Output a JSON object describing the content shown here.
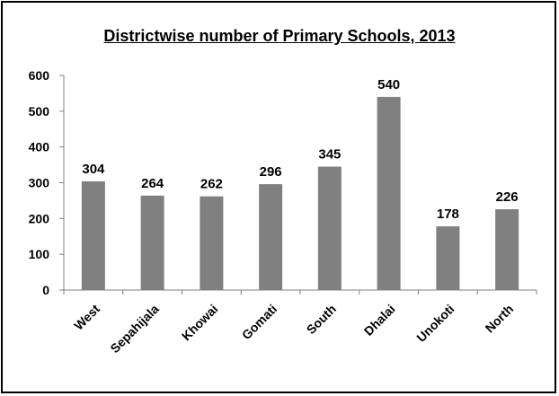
{
  "chart_data": {
    "type": "bar",
    "title": "Districtwise number of Primary Schools, 2013",
    "categories": [
      "West",
      "Sepahijala",
      "Khowai",
      "Gomati",
      "South",
      "Dhalai",
      "Unokoti",
      "North"
    ],
    "values": [
      304,
      264,
      262,
      296,
      345,
      540,
      178,
      226
    ],
    "xlabel": "",
    "ylabel": "",
    "ylim": [
      0,
      600
    ],
    "yticks": [
      "0",
      "100",
      "200",
      "300",
      "400",
      "500",
      "600"
    ],
    "grid": false,
    "legend": "none",
    "bar_color": "#808080"
  }
}
